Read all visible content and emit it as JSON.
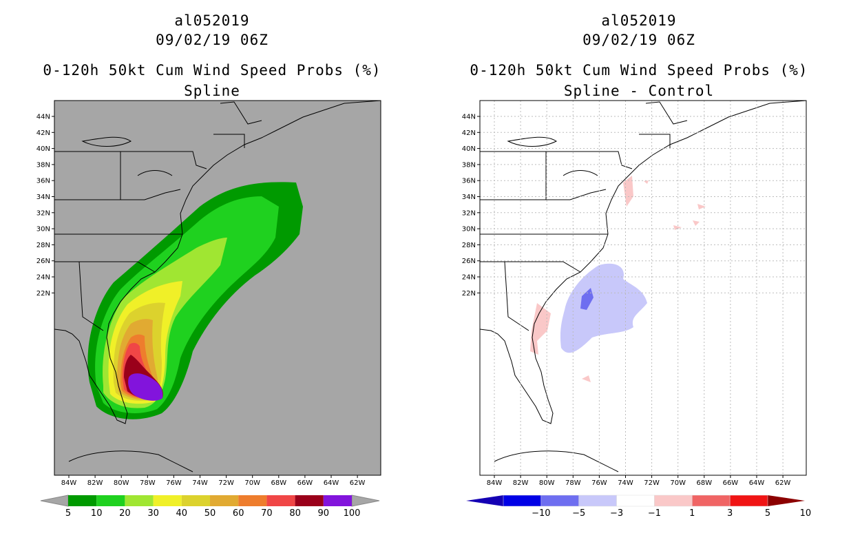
{
  "left_panel": {
    "storm_id": "al052019",
    "datetime": "09/02/19 06Z",
    "product": "0-120h 50kt Cum Wind Speed Probs (%)",
    "subtitle": "Spline",
    "lat_labels": [
      "44N",
      "42N",
      "40N",
      "38N",
      "36N",
      "34N",
      "32N",
      "30N",
      "28N",
      "26N",
      "24N",
      "22N"
    ],
    "lon_labels": [
      "84W",
      "82W",
      "80W",
      "78W",
      "76W",
      "74W",
      "72W",
      "70W",
      "68W",
      "66W",
      "64W",
      "62W"
    ],
    "colorbar": {
      "labels": [
        "5",
        "10",
        "20",
        "30",
        "40",
        "50",
        "60",
        "70",
        "80",
        "90",
        "100"
      ],
      "colors": [
        "#009a00",
        "#1fd11f",
        "#a0e632",
        "#f0f028",
        "#dcd22d",
        "#e1aa32",
        "#ee7d2d",
        "#f04646",
        "#9a001a",
        "#8214dc"
      ]
    }
  },
  "right_panel": {
    "storm_id": "al052019",
    "datetime": "09/02/19 06Z",
    "product": "0-120h 50kt Cum Wind Speed Probs (%)",
    "subtitle": "Spline - Control",
    "lat_labels": [
      "44N",
      "42N",
      "40N",
      "38N",
      "36N",
      "34N",
      "32N",
      "30N",
      "28N",
      "26N",
      "24N",
      "22N"
    ],
    "lon_labels": [
      "84W",
      "82W",
      "80W",
      "78W",
      "76W",
      "74W",
      "72W",
      "70W",
      "68W",
      "66W",
      "64W",
      "62W"
    ],
    "colorbar": {
      "labels": [
        "-10",
        "-5",
        "-3",
        "-1",
        "1",
        "3",
        "5",
        "10"
      ],
      "colors": [
        "#1400b4",
        "#0000e6",
        "#6e6ef0",
        "#c8c8fa",
        "#ffffff",
        "#fac8c8",
        "#f06464",
        "#f01414",
        "#8c0000"
      ]
    }
  },
  "map_colors": {
    "background_gray": "#a6a6a6",
    "coastline": "#000000",
    "grid": "#bbbbbb"
  }
}
